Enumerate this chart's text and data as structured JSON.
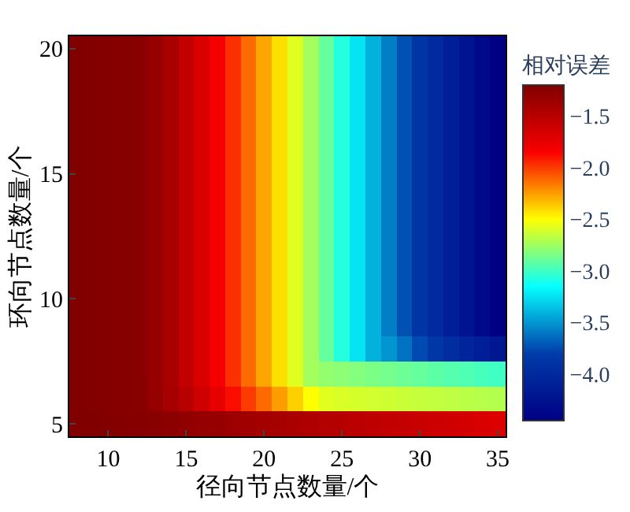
{
  "chart_data": {
    "type": "heatmap",
    "xlabel": "径向节点数量/个",
    "ylabel": "环向节点数量/个",
    "clabel": "相对误差",
    "categories": [
      null,
      null,
      "10",
      null,
      null,
      null,
      null,
      "15",
      null,
      null,
      null,
      null,
      "20",
      null,
      null,
      null,
      null,
      "25",
      null,
      null,
      null,
      null,
      "30",
      null,
      null,
      null,
      null,
      "35"
    ],
    "y_categories": [
      "20",
      null,
      null,
      null,
      null,
      "15",
      null,
      null,
      null,
      null,
      "10",
      null,
      null,
      null,
      null,
      "5"
    ],
    "cells": [
      [
        -1.2,
        -1.21,
        -1.22,
        -1.23,
        -1.25,
        -1.33,
        -1.42,
        -1.55,
        -1.68,
        -1.82,
        -1.97,
        -2.12,
        -2.27,
        -2.42,
        -2.58,
        -2.74,
        -2.9,
        -3.07,
        -3.24,
        -3.41,
        -3.58,
        -3.73,
        -3.88,
        -4.0,
        -4.12,
        -4.24,
        -4.35,
        -4.45
      ],
      [
        -1.2,
        -1.21,
        -1.22,
        -1.23,
        -1.25,
        -1.33,
        -1.42,
        -1.55,
        -1.68,
        -1.82,
        -1.97,
        -2.12,
        -2.27,
        -2.42,
        -2.58,
        -2.74,
        -2.9,
        -3.07,
        -3.24,
        -3.41,
        -3.58,
        -3.73,
        -3.88,
        -4.0,
        -4.12,
        -4.24,
        -4.35,
        -4.45
      ],
      [
        -1.2,
        -1.21,
        -1.22,
        -1.23,
        -1.25,
        -1.33,
        -1.42,
        -1.55,
        -1.68,
        -1.82,
        -1.97,
        -2.12,
        -2.27,
        -2.42,
        -2.58,
        -2.74,
        -2.9,
        -3.07,
        -3.24,
        -3.41,
        -3.58,
        -3.73,
        -3.88,
        -4.0,
        -4.12,
        -4.24,
        -4.35,
        -4.45
      ],
      [
        -1.2,
        -1.21,
        -1.22,
        -1.23,
        -1.25,
        -1.33,
        -1.42,
        -1.55,
        -1.68,
        -1.82,
        -1.97,
        -2.12,
        -2.27,
        -2.42,
        -2.58,
        -2.74,
        -2.9,
        -3.07,
        -3.24,
        -3.41,
        -3.58,
        -3.73,
        -3.88,
        -4.0,
        -4.12,
        -4.24,
        -4.35,
        -4.45
      ],
      [
        -1.2,
        -1.21,
        -1.22,
        -1.23,
        -1.25,
        -1.33,
        -1.42,
        -1.55,
        -1.68,
        -1.82,
        -1.97,
        -2.12,
        -2.27,
        -2.42,
        -2.58,
        -2.74,
        -2.9,
        -3.07,
        -3.24,
        -3.41,
        -3.58,
        -3.73,
        -3.88,
        -4.0,
        -4.12,
        -4.24,
        -4.35,
        -4.45
      ],
      [
        -1.2,
        -1.21,
        -1.22,
        -1.23,
        -1.25,
        -1.33,
        -1.42,
        -1.55,
        -1.68,
        -1.82,
        -1.97,
        -2.12,
        -2.27,
        -2.42,
        -2.58,
        -2.74,
        -2.9,
        -3.07,
        -3.24,
        -3.41,
        -3.58,
        -3.73,
        -3.88,
        -4.0,
        -4.12,
        -4.24,
        -4.35,
        -4.45
      ],
      [
        -1.2,
        -1.21,
        -1.22,
        -1.23,
        -1.25,
        -1.33,
        -1.42,
        -1.55,
        -1.68,
        -1.82,
        -1.97,
        -2.12,
        -2.27,
        -2.42,
        -2.58,
        -2.74,
        -2.9,
        -3.07,
        -3.24,
        -3.41,
        -3.58,
        -3.73,
        -3.88,
        -4.0,
        -4.12,
        -4.24,
        -4.35,
        -4.45
      ],
      [
        -1.2,
        -1.21,
        -1.22,
        -1.23,
        -1.25,
        -1.33,
        -1.42,
        -1.55,
        -1.68,
        -1.82,
        -1.97,
        -2.12,
        -2.27,
        -2.42,
        -2.58,
        -2.74,
        -2.9,
        -3.07,
        -3.24,
        -3.41,
        -3.58,
        -3.73,
        -3.88,
        -4.0,
        -4.12,
        -4.24,
        -4.35,
        -4.45
      ],
      [
        -1.2,
        -1.21,
        -1.22,
        -1.23,
        -1.25,
        -1.33,
        -1.42,
        -1.55,
        -1.68,
        -1.82,
        -1.97,
        -2.12,
        -2.27,
        -2.42,
        -2.58,
        -2.74,
        -2.9,
        -3.07,
        -3.24,
        -3.41,
        -3.58,
        -3.73,
        -3.88,
        -4.0,
        -4.12,
        -4.24,
        -4.35,
        -4.45
      ],
      [
        -1.2,
        -1.21,
        -1.22,
        -1.23,
        -1.25,
        -1.33,
        -1.42,
        -1.55,
        -1.68,
        -1.82,
        -1.97,
        -2.12,
        -2.27,
        -2.42,
        -2.58,
        -2.74,
        -2.9,
        -3.07,
        -3.24,
        -3.41,
        -3.58,
        -3.73,
        -3.88,
        -4.0,
        -4.12,
        -4.24,
        -4.35,
        -4.45
      ],
      [
        -1.2,
        -1.21,
        -1.22,
        -1.23,
        -1.25,
        -1.33,
        -1.42,
        -1.55,
        -1.68,
        -1.82,
        -1.97,
        -2.12,
        -2.27,
        -2.42,
        -2.58,
        -2.74,
        -2.9,
        -3.07,
        -3.24,
        -3.41,
        -3.58,
        -3.73,
        -3.88,
        -4.0,
        -4.12,
        -4.24,
        -4.35,
        -4.45
      ],
      [
        -1.2,
        -1.21,
        -1.22,
        -1.23,
        -1.25,
        -1.33,
        -1.42,
        -1.55,
        -1.68,
        -1.82,
        -1.97,
        -2.12,
        -2.27,
        -2.42,
        -2.58,
        -2.74,
        -2.9,
        -3.07,
        -3.24,
        -3.41,
        -3.58,
        -3.73,
        -3.88,
        -4.0,
        -4.12,
        -4.24,
        -4.35,
        -4.45
      ],
      [
        -1.2,
        -1.21,
        -1.22,
        -1.23,
        -1.25,
        -1.33,
        -1.42,
        -1.55,
        -1.68,
        -1.82,
        -1.97,
        -2.12,
        -2.27,
        -2.42,
        -2.58,
        -2.74,
        -2.9,
        -3.07,
        -3.24,
        -3.41,
        -3.5,
        -3.62,
        -3.75,
        -3.85,
        -3.95,
        -4.05,
        -4.12,
        -4.2
      ],
      [
        -1.2,
        -1.21,
        -1.22,
        -1.23,
        -1.25,
        -1.33,
        -1.42,
        -1.55,
        -1.68,
        -1.82,
        -1.97,
        -2.12,
        -2.27,
        -2.42,
        -2.58,
        -2.74,
        -2.78,
        -2.8,
        -2.82,
        -2.84,
        -2.86,
        -2.88,
        -2.9,
        -2.92,
        -2.94,
        -2.96,
        -2.98,
        -3.0
      ],
      [
        -1.2,
        -1.21,
        -1.22,
        -1.23,
        -1.25,
        -1.32,
        -1.4,
        -1.5,
        -1.62,
        -1.75,
        -1.88,
        -2.0,
        -2.12,
        -2.25,
        -2.38,
        -2.5,
        -2.58,
        -2.6,
        -2.61,
        -2.62,
        -2.63,
        -2.64,
        -2.65,
        -2.66,
        -2.67,
        -2.68,
        -2.69,
        -2.7
      ],
      [
        -1.2,
        -1.2,
        -1.21,
        -1.22,
        -1.23,
        -1.25,
        -1.27,
        -1.29,
        -1.31,
        -1.33,
        -1.35,
        -1.37,
        -1.39,
        -1.41,
        -1.43,
        -1.45,
        -1.47,
        -1.49,
        -1.51,
        -1.53,
        -1.55,
        -1.57,
        -1.59,
        -1.61,
        -1.63,
        -1.65,
        -1.67,
        -1.69
      ]
    ],
    "clim": [
      -4.45,
      -1.2
    ],
    "cticks": [
      {
        "value": -4.0,
        "label": "−4.0"
      },
      {
        "value": -3.5,
        "label": "−3.5"
      },
      {
        "value": -3.0,
        "label": "−3.0"
      },
      {
        "value": -2.5,
        "label": "−2.5"
      },
      {
        "value": -2.0,
        "label": "−2.0"
      },
      {
        "value": -1.5,
        "label": "−1.5"
      }
    ]
  }
}
